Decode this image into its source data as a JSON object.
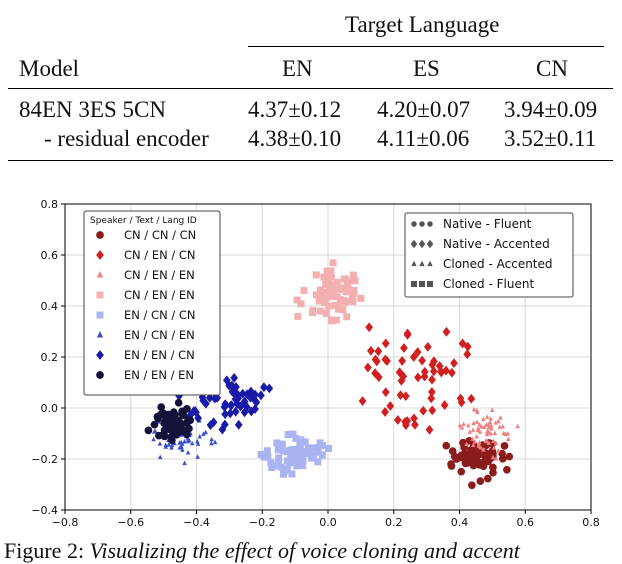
{
  "table": {
    "spanning_header": "Target Language",
    "columns": [
      "Model",
      "EN",
      "ES",
      "CN"
    ],
    "rows": [
      {
        "model": "84EN 3ES 5CN",
        "values": [
          "4.37±0.12",
          "4.20±0.07",
          "3.94±0.09"
        ]
      },
      {
        "model": "- residual encoder",
        "values": [
          "4.38±0.10",
          "4.11±0.06",
          "3.52±0.11"
        ]
      }
    ]
  },
  "chart_data": {
    "type": "scatter",
    "xlim": [
      -0.8,
      0.8
    ],
    "ylim": [
      -0.4,
      0.8
    ],
    "xticks": [
      "−0.8",
      "−0.6",
      "−0.4",
      "−0.2",
      "0.0",
      "0.2",
      "0.4",
      "0.6",
      "0.8"
    ],
    "yticks": [
      "−0.4",
      "−0.2",
      "0.0",
      "0.2",
      "0.4",
      "0.6",
      "0.8"
    ],
    "grid": true,
    "legend_left": {
      "title": "Speaker / Text / Lang ID",
      "placement": "upper-left",
      "entries": [
        "CN / CN / CN",
        "CN / EN / CN",
        "CN / EN / EN",
        "CN / EN / EN",
        "EN / CN / CN",
        "EN / CN / EN",
        "EN / EN / CN",
        "EN / EN / EN"
      ]
    },
    "legend_right": {
      "placement": "upper-right",
      "entries": [
        "Native - Fluent",
        "Native - Accented",
        "Cloned - Accented",
        "Cloned - Fluent"
      ]
    },
    "series": [
      {
        "color": "#8b1c1c",
        "marker": "circle",
        "cluster": {
          "cx": 0.45,
          "cy": -0.2,
          "sx": 0.05,
          "sy": 0.05,
          "n": 60
        }
      },
      {
        "color": "#d11f1f",
        "marker": "diamond",
        "cluster": {
          "cx": 0.28,
          "cy": 0.12,
          "sx": 0.12,
          "sy": 0.12,
          "n": 60
        }
      },
      {
        "color": "#f08080",
        "marker": "triangle",
        "cluster": {
          "cx": 0.48,
          "cy": -0.1,
          "sx": 0.05,
          "sy": 0.06,
          "n": 60
        }
      },
      {
        "color": "#f4b0b0",
        "marker": "square",
        "cluster": {
          "cx": 0.01,
          "cy": 0.44,
          "sx": 0.06,
          "sy": 0.08,
          "n": 70
        }
      },
      {
        "color": "#aab4f0",
        "marker": "square",
        "cluster": {
          "cx": -0.1,
          "cy": -0.18,
          "sx": 0.07,
          "sy": 0.05,
          "n": 70
        }
      },
      {
        "color": "#3a4fd0",
        "marker": "triangle",
        "cluster": {
          "cx": -0.45,
          "cy": -0.12,
          "sx": 0.06,
          "sy": 0.06,
          "n": 60
        }
      },
      {
        "color": "#1a1aa8",
        "marker": "diamond",
        "cluster": {
          "cx": -0.3,
          "cy": 0.03,
          "sx": 0.08,
          "sy": 0.08,
          "n": 60
        }
      },
      {
        "color": "#12123a",
        "marker": "circle",
        "cluster": {
          "cx": -0.48,
          "cy": -0.05,
          "sx": 0.04,
          "sy": 0.05,
          "n": 60
        }
      }
    ]
  },
  "caption": {
    "prefix": "Figure 2: ",
    "text": "Visualizing the effect of voice cloning and accent"
  }
}
